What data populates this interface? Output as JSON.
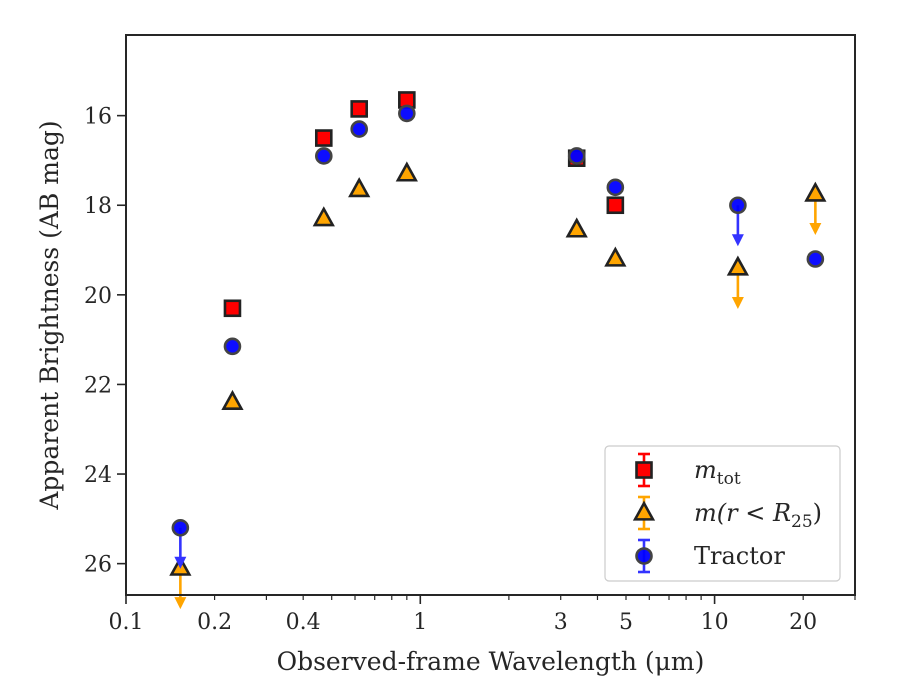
{
  "chart_data": {
    "type": "scatter",
    "xlabel": "Observed-frame Wavelength (μm)",
    "ylabel": "Apparent Brightness (AB mag)",
    "xscale": "log",
    "xlim": [
      0.1,
      30
    ],
    "ylim": [
      26.7,
      14.2
    ],
    "y_inverted": true,
    "grid": false,
    "legend_position": "lower-right",
    "x_tick_labels": [
      {
        "value": 0.1,
        "label": "0.1"
      },
      {
        "value": 0.2,
        "label": "0.2"
      },
      {
        "value": 0.4,
        "label": "0.4"
      },
      {
        "value": 1,
        "label": "1"
      },
      {
        "value": 3,
        "label": "3"
      },
      {
        "value": 5,
        "label": "5"
      },
      {
        "value": 10,
        "label": "10"
      },
      {
        "value": 20,
        "label": "20"
      }
    ],
    "y_tick_labels": [
      {
        "value": 16,
        "label": "16"
      },
      {
        "value": 18,
        "label": "18"
      },
      {
        "value": 20,
        "label": "20"
      },
      {
        "value": 22,
        "label": "22"
      },
      {
        "value": 24,
        "label": "24"
      },
      {
        "value": 26,
        "label": "26"
      }
    ],
    "series": [
      {
        "name": "m_tot",
        "label_main": "m",
        "label_sub": "tot",
        "marker": "square",
        "color": "#ff0000",
        "edge_color": "#222222",
        "points": [
          {
            "x": 0.23,
            "y": 20.3
          },
          {
            "x": 0.47,
            "y": 16.5
          },
          {
            "x": 0.62,
            "y": 15.85
          },
          {
            "x": 0.9,
            "y": 15.65
          },
          {
            "x": 3.4,
            "y": 16.95
          },
          {
            "x": 4.6,
            "y": 18.0
          }
        ]
      },
      {
        "name": "m(r < R_25)",
        "label_main": "m(r < R",
        "label_sub": "25",
        "label_tail": ")",
        "marker": "triangle",
        "color": "#ffa500",
        "edge_color": "#222222",
        "points": [
          {
            "x": 0.153,
            "y": 26.1,
            "upper_limit": true
          },
          {
            "x": 0.23,
            "y": 22.4
          },
          {
            "x": 0.47,
            "y": 18.3
          },
          {
            "x": 0.62,
            "y": 17.65
          },
          {
            "x": 0.9,
            "y": 17.3
          },
          {
            "x": 3.4,
            "y": 18.55
          },
          {
            "x": 4.6,
            "y": 19.2
          },
          {
            "x": 12,
            "y": 19.4,
            "upper_limit": true
          },
          {
            "x": 22,
            "y": 17.75,
            "upper_limit": true
          }
        ]
      },
      {
        "name": "Tractor",
        "label_main": "Tractor",
        "marker": "circle",
        "color": "#0000ff",
        "edge_color": "#444444",
        "points": [
          {
            "x": 0.153,
            "y": 25.2,
            "upper_limit": true
          },
          {
            "x": 0.23,
            "y": 21.15
          },
          {
            "x": 0.47,
            "y": 16.9
          },
          {
            "x": 0.62,
            "y": 16.3
          },
          {
            "x": 0.9,
            "y": 15.95
          },
          {
            "x": 3.4,
            "y": 16.9
          },
          {
            "x": 4.6,
            "y": 17.6
          },
          {
            "x": 12,
            "y": 18.0,
            "upper_limit": true
          },
          {
            "x": 22,
            "y": 19.2
          }
        ]
      }
    ]
  }
}
